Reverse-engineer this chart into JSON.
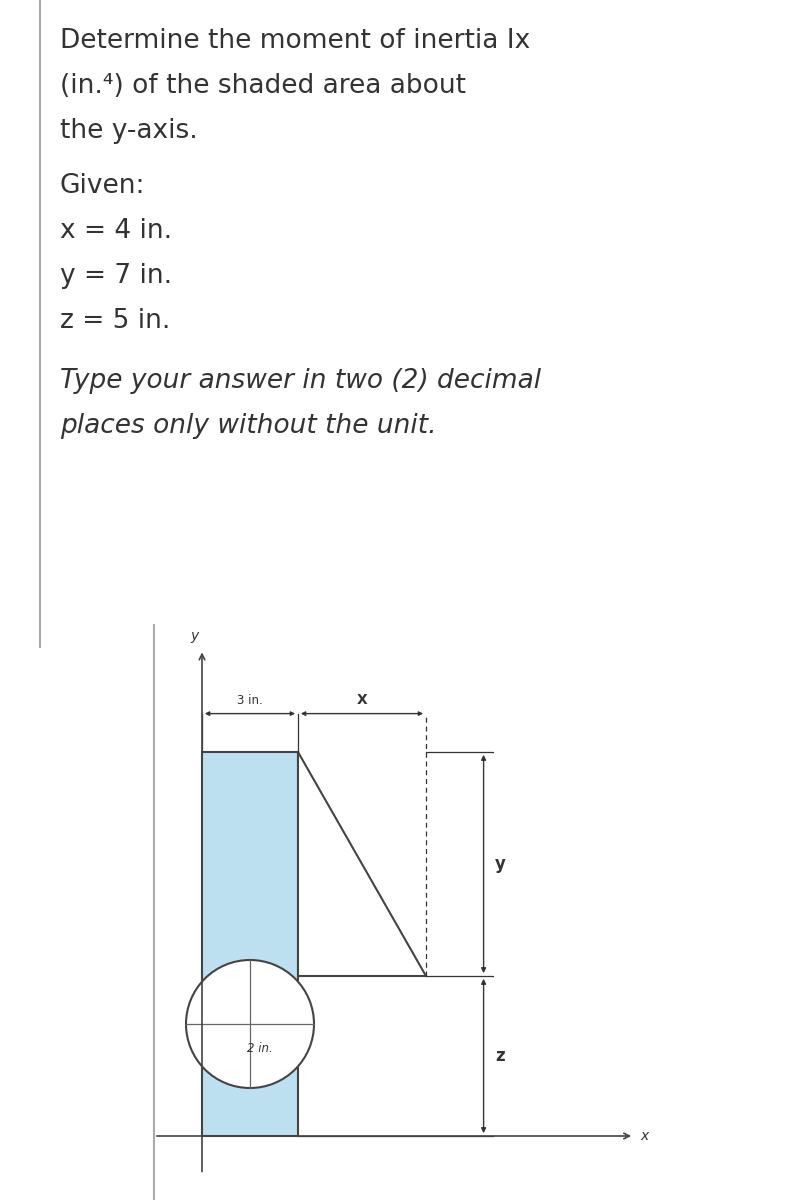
{
  "title_line1": "Determine the moment of inertia Ix",
  "title_line2": "(in.⁴) of the shaded area about",
  "title_line3": "the y-axis.",
  "given_label": "Given:",
  "x_val": "x = 4 in.",
  "y_val": "y = 7 in.",
  "z_val": "z = 5 in.",
  "instruction_line1": "Type your answer in two (2) decimal",
  "instruction_line2": "places only without the unit.",
  "dim_3in": "3 in.",
  "dim_X": "X",
  "dim_y_label": "y",
  "dim_z_label": "z",
  "dim_circle": "2 in.",
  "y_axis_label": "y",
  "x_axis_label": "x",
  "shaded_color": "#bde0f0",
  "shaded_edge_color": "#444444",
  "background_color": "#ffffff",
  "text_color": "#333333",
  "border_color": "#aaaaaa"
}
